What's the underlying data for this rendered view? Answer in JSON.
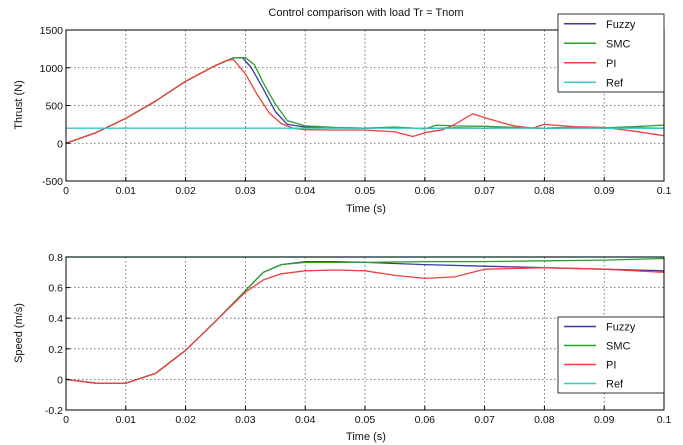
{
  "chart_data": [
    {
      "type": "line",
      "title": "Control comparison with load Tr = Tnom",
      "xlabel": "Time (s)",
      "ylabel": "Thrust (N)",
      "xlim": [
        0,
        0.1
      ],
      "ylim": [
        -500,
        1500
      ],
      "xticks": [
        0,
        0.01,
        0.02,
        0.03,
        0.04,
        0.05,
        0.06,
        0.07,
        0.08,
        0.09,
        0.1
      ],
      "xtick_labels": [
        "0",
        "0.01",
        "0.02",
        "0.03",
        "0.04",
        "0.05",
        "0.06",
        "0.07",
        "0.08",
        "0.09",
        "0.1"
      ],
      "yticks": [
        -500,
        0,
        500,
        1000,
        1500
      ],
      "ytick_labels": [
        "-500",
        "0",
        "500",
        "1000",
        "1500"
      ],
      "grid": true,
      "legend_position": "top-right",
      "series": [
        {
          "name": "Fuzzy",
          "color": "#3a3aa8",
          "x": [
            0,
            0.005,
            0.01,
            0.015,
            0.02,
            0.025,
            0.028,
            0.0295,
            0.031,
            0.033,
            0.035,
            0.037,
            0.04,
            0.045,
            0.05,
            0.055,
            0.06,
            0.065,
            0.07,
            0.075,
            0.08,
            0.085,
            0.09,
            0.095,
            0.1
          ],
          "y": [
            0,
            140,
            330,
            560,
            820,
            1030,
            1130,
            1135,
            1000,
            720,
            420,
            250,
            215,
            205,
            200,
            210,
            195,
            205,
            200,
            210,
            195,
            205,
            200,
            205,
            200
          ]
        },
        {
          "name": "SMC",
          "color": "#2ca02c",
          "x": [
            0,
            0.005,
            0.01,
            0.015,
            0.02,
            0.025,
            0.028,
            0.03,
            0.0315,
            0.033,
            0.035,
            0.037,
            0.04,
            0.045,
            0.05,
            0.055,
            0.06,
            0.062,
            0.065,
            0.07,
            0.075,
            0.08,
            0.085,
            0.09,
            0.095,
            0.1
          ],
          "y": [
            0,
            140,
            330,
            560,
            820,
            1030,
            1130,
            1135,
            1040,
            800,
            520,
            300,
            230,
            210,
            200,
            215,
            190,
            240,
            230,
            225,
            210,
            200,
            215,
            205,
            220,
            240
          ]
        },
        {
          "name": "PI",
          "color": "#ee4040",
          "x": [
            0,
            0.005,
            0.01,
            0.015,
            0.02,
            0.025,
            0.027,
            0.028,
            0.03,
            0.032,
            0.034,
            0.036,
            0.038,
            0.04,
            0.045,
            0.05,
            0.055,
            0.058,
            0.06,
            0.063,
            0.065,
            0.068,
            0.07,
            0.073,
            0.075,
            0.078,
            0.08,
            0.085,
            0.09,
            0.095,
            0.1
          ],
          "y": [
            0,
            140,
            330,
            560,
            820,
            1030,
            1100,
            1110,
            920,
            640,
            400,
            260,
            200,
            180,
            175,
            175,
            150,
            90,
            140,
            180,
            250,
            390,
            340,
            270,
            230,
            200,
            250,
            220,
            210,
            160,
            100
          ]
        },
        {
          "name": "Ref",
          "color": "#3cc6c6",
          "x": [
            0,
            0.1
          ],
          "y": [
            200,
            200
          ]
        }
      ]
    },
    {
      "type": "line",
      "title": "",
      "xlabel": "Time (s)",
      "ylabel": "Speed (m/s)",
      "xlim": [
        0,
        0.1
      ],
      "ylim": [
        -0.2,
        0.8
      ],
      "xticks": [
        0,
        0.01,
        0.02,
        0.03,
        0.04,
        0.05,
        0.06,
        0.07,
        0.08,
        0.09,
        0.1
      ],
      "xtick_labels": [
        "0",
        "0.01",
        "0.02",
        "0.03",
        "0.04",
        "0.05",
        "0.06",
        "0.07",
        "0.08",
        "0.09",
        "0.1"
      ],
      "yticks": [
        -0.2,
        0,
        0.2,
        0.4,
        0.6,
        0.8
      ],
      "ytick_labels": [
        "-0.2",
        "0",
        "0.2",
        "0.4",
        "0.6",
        "0.8"
      ],
      "grid": true,
      "legend_position": "bottom-right",
      "series": [
        {
          "name": "Fuzzy",
          "color": "#3a3aa8",
          "x": [
            0,
            0.005,
            0.01,
            0.015,
            0.02,
            0.025,
            0.03,
            0.033,
            0.036,
            0.04,
            0.045,
            0.05,
            0.06,
            0.07,
            0.08,
            0.09,
            0.1
          ],
          "y": [
            0,
            -0.025,
            -0.025,
            0.04,
            0.19,
            0.38,
            0.58,
            0.7,
            0.75,
            0.77,
            0.77,
            0.765,
            0.75,
            0.74,
            0.73,
            0.72,
            0.71
          ]
        },
        {
          "name": "SMC",
          "color": "#2ca02c",
          "x": [
            0,
            0.005,
            0.01,
            0.015,
            0.02,
            0.025,
            0.03,
            0.033,
            0.036,
            0.04,
            0.045,
            0.05,
            0.06,
            0.07,
            0.08,
            0.09,
            0.1
          ],
          "y": [
            0,
            -0.025,
            -0.025,
            0.04,
            0.19,
            0.38,
            0.58,
            0.7,
            0.75,
            0.765,
            0.765,
            0.765,
            0.77,
            0.77,
            0.775,
            0.78,
            0.79
          ]
        },
        {
          "name": "PI",
          "color": "#ee4040",
          "x": [
            0,
            0.005,
            0.01,
            0.015,
            0.02,
            0.025,
            0.03,
            0.033,
            0.036,
            0.04,
            0.045,
            0.05,
            0.055,
            0.06,
            0.065,
            0.07,
            0.08,
            0.09,
            0.1
          ],
          "y": [
            0,
            -0.025,
            -0.025,
            0.04,
            0.19,
            0.38,
            0.57,
            0.65,
            0.69,
            0.71,
            0.715,
            0.71,
            0.68,
            0.66,
            0.67,
            0.72,
            0.73,
            0.72,
            0.7
          ]
        },
        {
          "name": "Ref",
          "color": "#3cc6c6",
          "x": [
            0,
            0.1
          ],
          "y": [
            0.8,
            0.8
          ]
        }
      ]
    }
  ]
}
